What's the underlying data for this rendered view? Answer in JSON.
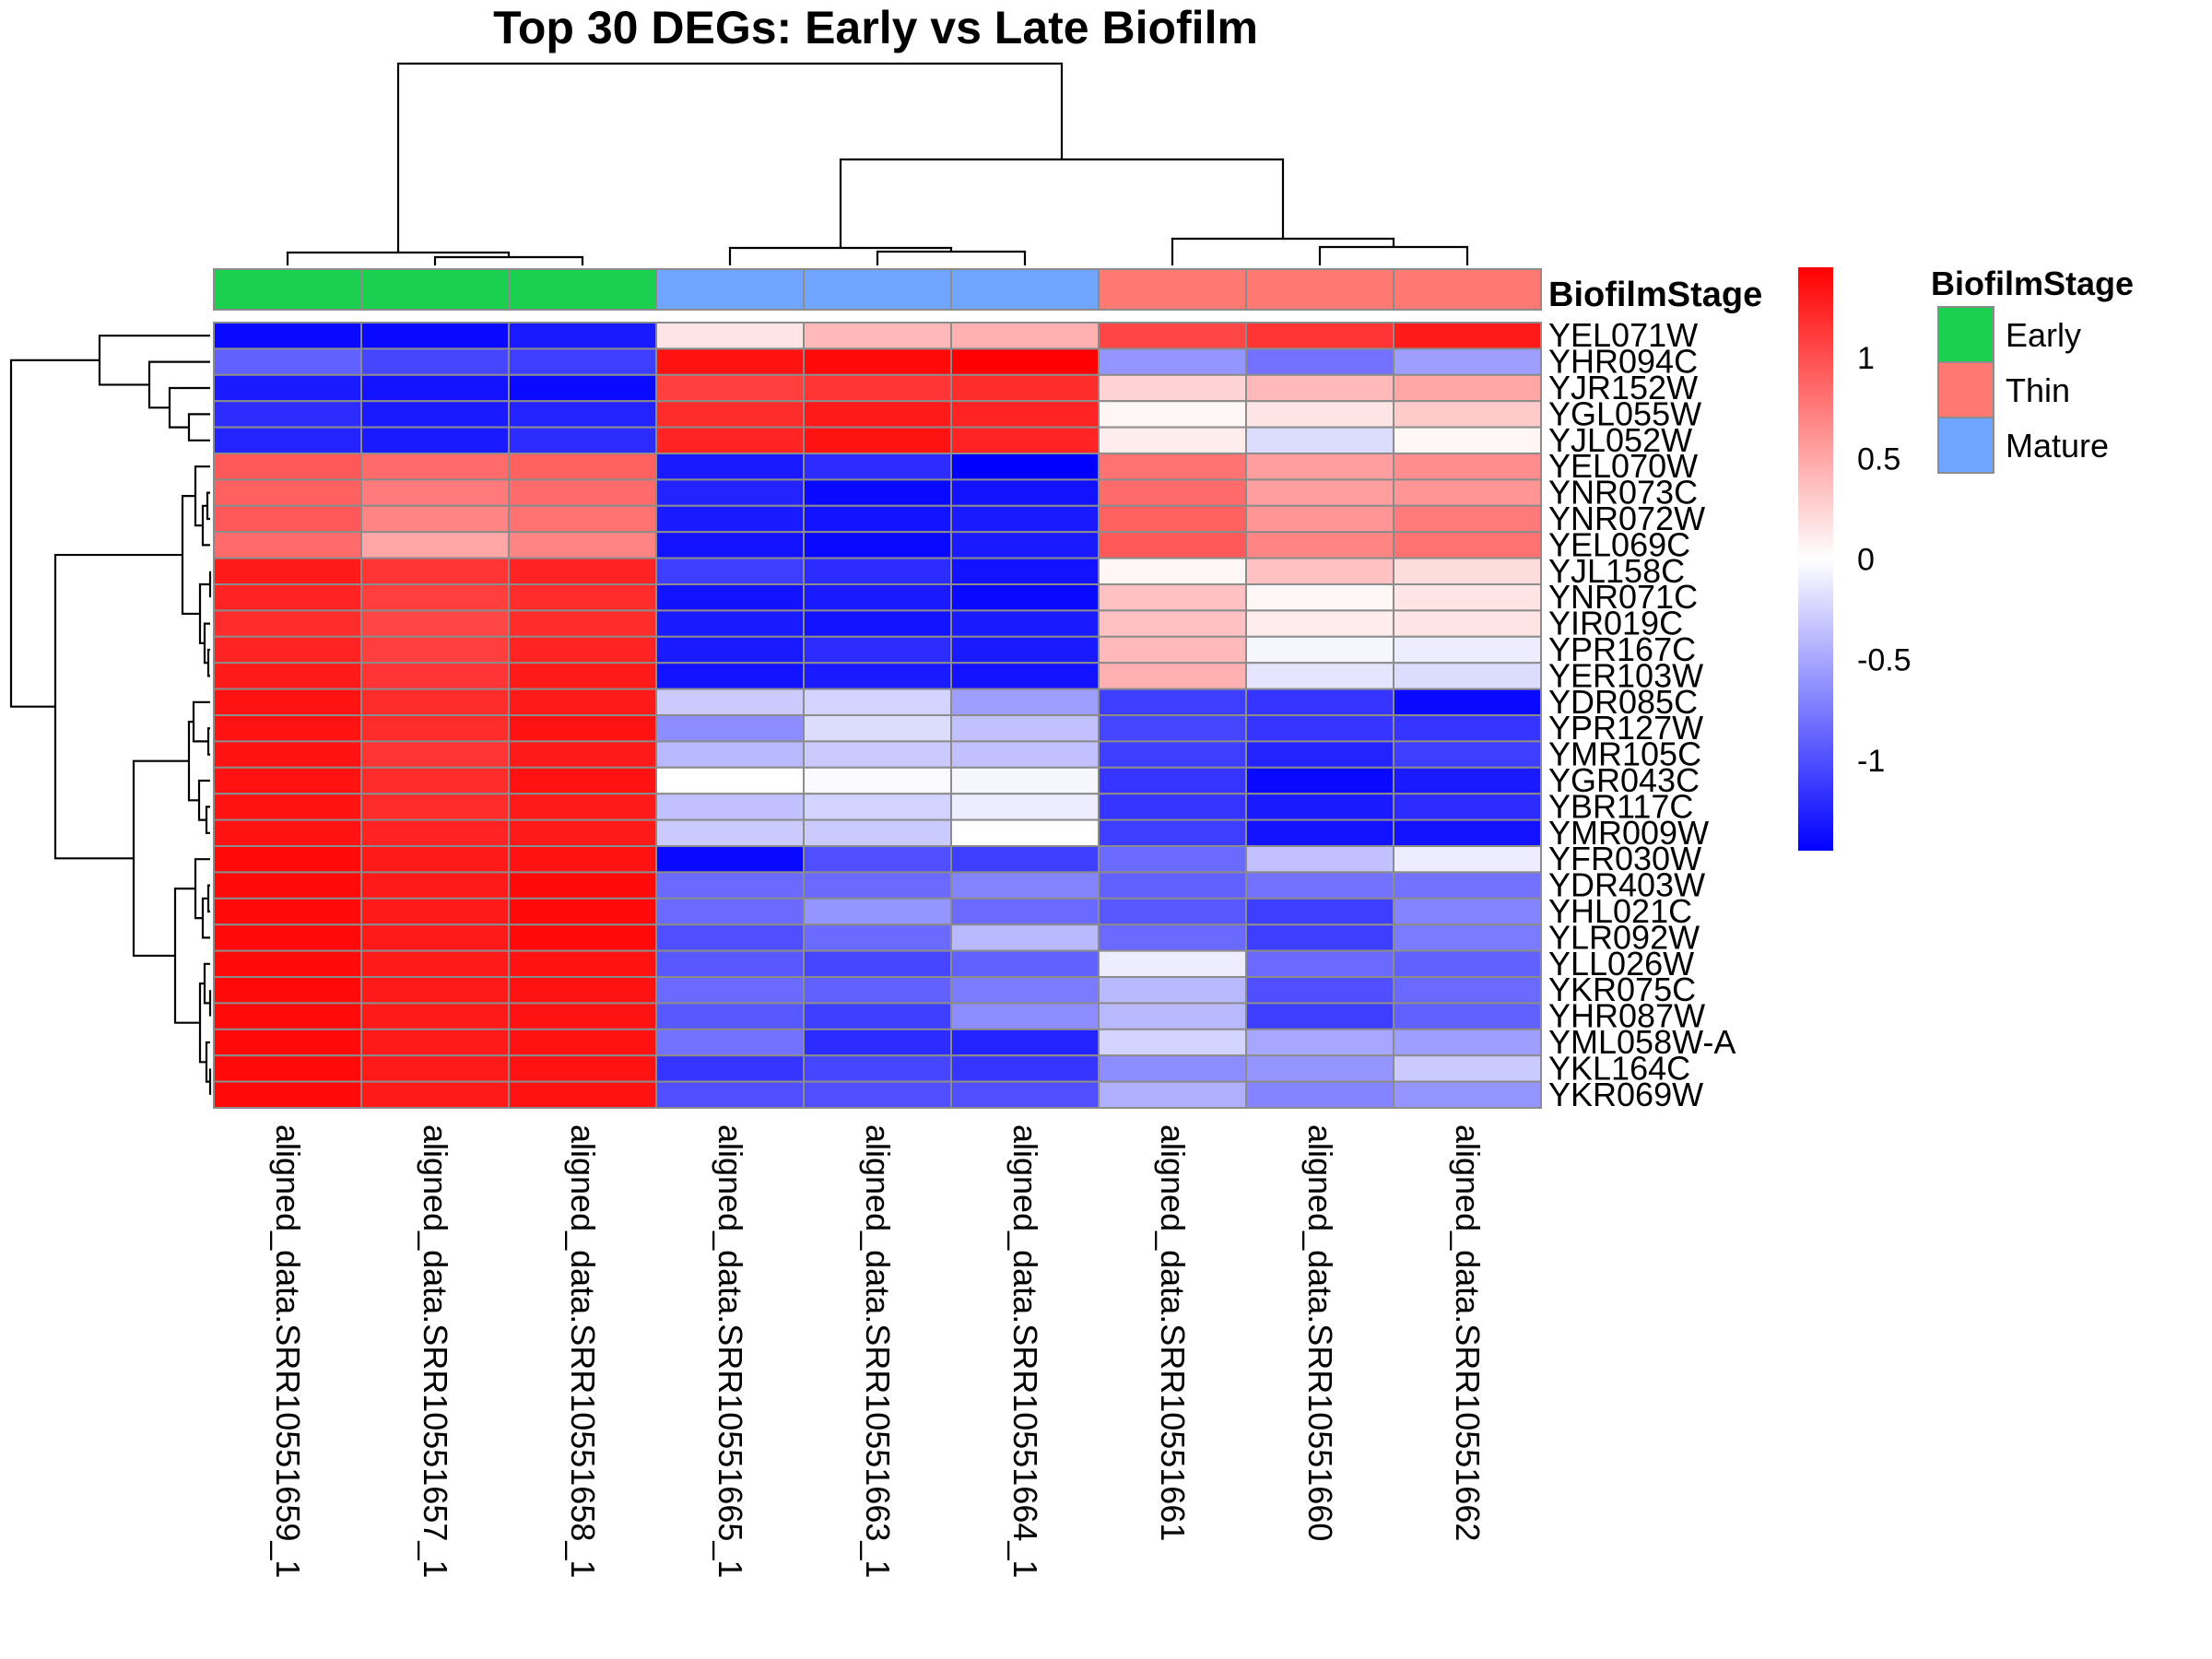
{
  "chart_data": {
    "type": "heatmap",
    "title": "Top 30 DEGs: Early vs Late Biofilm",
    "annotation_name": "BiofilmStage",
    "columns": [
      "aligned_data.SRR10551659_1",
      "aligned_data.SRR10551657_1",
      "aligned_data.SRR10551658_1",
      "aligned_data.SRR10551665_1",
      "aligned_data.SRR10551663_1",
      "aligned_data.SRR10551664_1",
      "aligned_data.SRR10551661",
      "aligned_data.SRR10551660",
      "aligned_data.SRR10551662"
    ],
    "column_groups": [
      "Early",
      "Early",
      "Early",
      "Mature",
      "Mature",
      "Mature",
      "Thin",
      "Thin",
      "Thin"
    ],
    "rows": [
      "YEL071W",
      "YHR094C",
      "YJR152W",
      "YGL055W",
      "YJL052W",
      "YEL070W",
      "YNR073C",
      "YNR072W",
      "YEL069C",
      "YJL158C",
      "YNR071C",
      "YIR019C",
      "YPR167C",
      "YER103W",
      "YDR085C",
      "YPR127W",
      "YMR105C",
      "YGR043C",
      "YBR117C",
      "YMR009W",
      "YFR030W",
      "YDR403W",
      "YHL021C",
      "YLR092W",
      "YLL026W",
      "YKR075C",
      "YHR087W",
      "YML058W-A",
      "YKL164C",
      "YKR069W"
    ],
    "values": [
      [
        -1.4,
        -1.4,
        -1.3,
        0.15,
        0.4,
        0.45,
        1.05,
        1.15,
        1.3
      ],
      [
        -0.9,
        -1.05,
        -1.1,
        1.35,
        1.4,
        1.45,
        -0.6,
        -0.8,
        -0.55
      ],
      [
        -1.3,
        -1.35,
        -1.4,
        1.1,
        1.15,
        1.2,
        0.25,
        0.4,
        0.5
      ],
      [
        -1.2,
        -1.3,
        -1.25,
        1.2,
        1.3,
        1.25,
        0.05,
        0.15,
        0.3
      ],
      [
        -1.25,
        -1.3,
        -1.2,
        1.25,
        1.35,
        1.25,
        0.1,
        -0.2,
        0.05
      ],
      [
        0.95,
        0.85,
        0.9,
        -1.3,
        -1.2,
        -1.45,
        0.8,
        0.55,
        0.65
      ],
      [
        0.9,
        0.75,
        0.85,
        -1.25,
        -1.4,
        -1.35,
        0.85,
        0.55,
        0.6
      ],
      [
        0.95,
        0.7,
        0.8,
        -1.3,
        -1.35,
        -1.3,
        0.9,
        0.6,
        0.75
      ],
      [
        0.85,
        0.5,
        0.7,
        -1.35,
        -1.4,
        -1.3,
        0.95,
        0.7,
        0.8
      ],
      [
        1.3,
        1.15,
        1.25,
        -1.1,
        -1.2,
        -1.35,
        0.05,
        0.35,
        0.2
      ],
      [
        1.25,
        1.1,
        1.2,
        -1.35,
        -1.3,
        -1.4,
        0.35,
        0.05,
        0.15
      ],
      [
        1.2,
        1.05,
        1.2,
        -1.3,
        -1.35,
        -1.3,
        0.35,
        0.1,
        0.15
      ],
      [
        1.25,
        1.1,
        1.25,
        -1.3,
        -1.2,
        -1.3,
        0.4,
        -0.05,
        -0.1
      ],
      [
        1.3,
        1.15,
        1.3,
        -1.35,
        -1.3,
        -1.35,
        0.45,
        -0.15,
        -0.2
      ],
      [
        1.35,
        1.2,
        1.3,
        -0.3,
        -0.25,
        -0.55,
        -1.1,
        -1.15,
        -1.4
      ],
      [
        1.35,
        1.2,
        1.35,
        -0.65,
        -0.2,
        -0.35,
        -1.05,
        -1.15,
        -1.15
      ],
      [
        1.35,
        1.15,
        1.3,
        -0.4,
        -0.3,
        -0.35,
        -1.1,
        -1.25,
        -1.1
      ],
      [
        1.35,
        1.2,
        1.35,
        0.0,
        -0.02,
        -0.05,
        -1.15,
        -1.4,
        -1.3
      ],
      [
        1.35,
        1.2,
        1.3,
        -0.35,
        -0.25,
        -0.1,
        -1.15,
        -1.3,
        -1.2
      ],
      [
        1.35,
        1.25,
        1.3,
        -0.3,
        -0.3,
        0.0,
        -1.1,
        -1.35,
        -1.35
      ],
      [
        1.4,
        1.3,
        1.35,
        -1.4,
        -1.0,
        -1.1,
        -0.85,
        -0.35,
        -0.1
      ],
      [
        1.4,
        1.3,
        1.4,
        -0.85,
        -0.85,
        -0.7,
        -0.9,
        -0.8,
        -0.8
      ],
      [
        1.4,
        1.3,
        1.4,
        -0.85,
        -0.6,
        -0.85,
        -0.95,
        -1.1,
        -0.7
      ],
      [
        1.4,
        1.3,
        1.4,
        -1.0,
        -0.85,
        -0.4,
        -0.85,
        -1.1,
        -0.75
      ],
      [
        1.4,
        1.3,
        1.35,
        -0.95,
        -1.05,
        -0.9,
        -0.1,
        -0.85,
        -0.9
      ],
      [
        1.4,
        1.3,
        1.35,
        -0.85,
        -0.9,
        -0.75,
        -0.4,
        -1.0,
        -0.85
      ],
      [
        1.4,
        1.3,
        1.35,
        -0.95,
        -1.1,
        -0.65,
        -0.4,
        -1.1,
        -0.9
      ],
      [
        1.4,
        1.3,
        1.35,
        -0.8,
        -1.2,
        -1.25,
        -0.25,
        -0.5,
        -0.55
      ],
      [
        1.4,
        1.3,
        1.35,
        -1.15,
        -1.05,
        -1.15,
        -0.65,
        -0.6,
        -0.3
      ],
      [
        1.4,
        1.3,
        1.35,
        -1.0,
        -1.0,
        -1.0,
        -0.45,
        -0.7,
        -0.6
      ]
    ],
    "color_scale": {
      "low": "#0000FF",
      "mid": "#FFFFFF",
      "high": "#FF0000",
      "min": -1.45,
      "max": 1.45
    },
    "colorbar_ticks": [
      1,
      0.5,
      0,
      -0.5,
      -1
    ],
    "legend": {
      "title": "BiofilmStage",
      "items": [
        {
          "label": "Early",
          "color": "#1BCF4F"
        },
        {
          "label": "Thin",
          "color": "#FF7872"
        },
        {
          "label": "Mature",
          "color": "#6FA5FF"
        }
      ]
    }
  }
}
